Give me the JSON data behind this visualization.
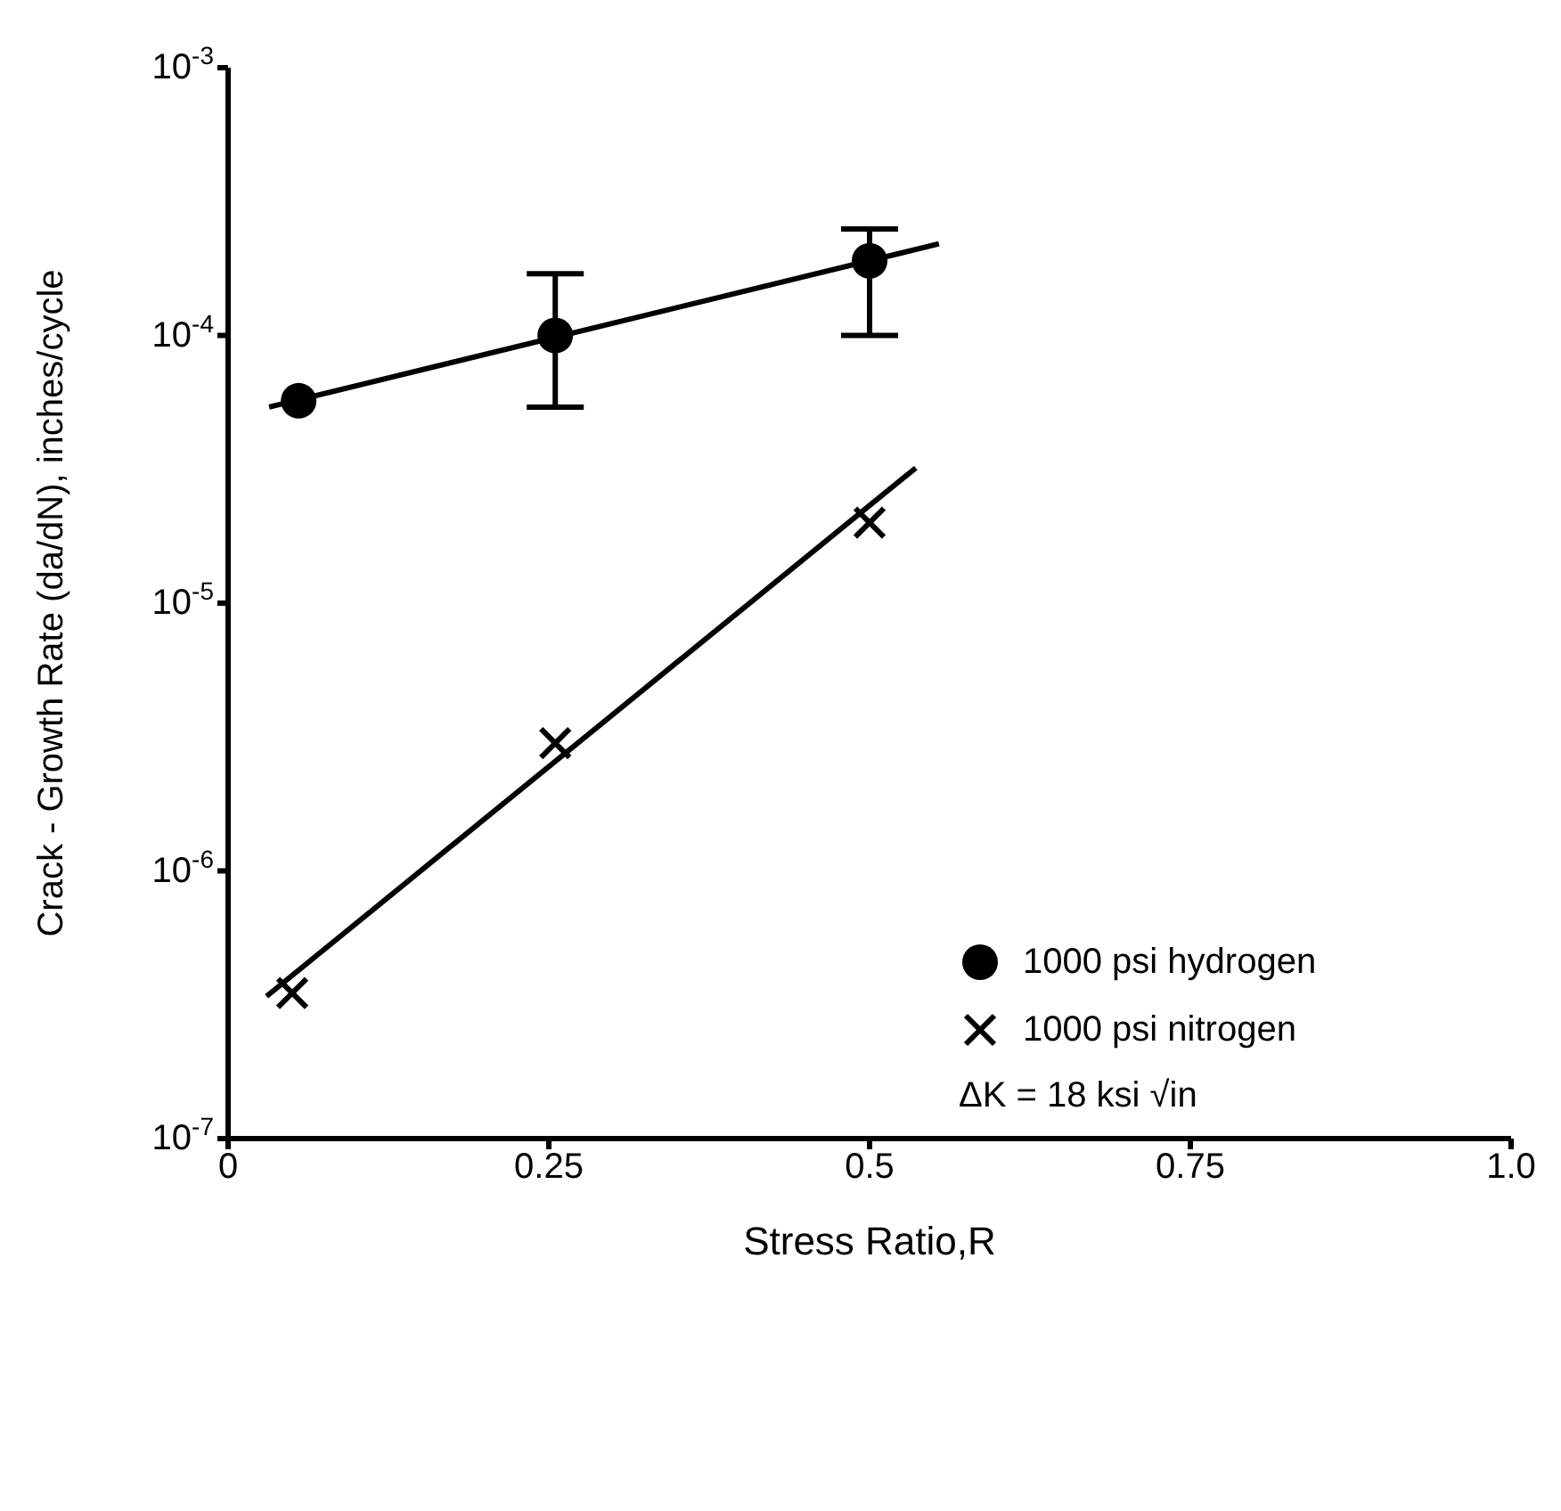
{
  "chart_data": {
    "type": "scatter",
    "xlabel": "Stress Ratio,R",
    "ylabel": "Crack - Growth Rate (da/dN), inches/cycle",
    "log": "y",
    "xlim": [
      0,
      1
    ],
    "xticks": [
      0,
      0.25,
      0.5,
      0.75,
      {
        "value": 1,
        "label": "1.0"
      }
    ],
    "ylim": [
      1e-07,
      0.001
    ],
    "yticks": [
      {
        "value": 1e-07,
        "label": "10$^{-7}$"
      },
      {
        "value": 1e-06,
        "label": "10$^{-6}$"
      },
      {
        "value": 1e-05,
        "label": "10$^{-5}$"
      },
      {
        "value": 0.0001,
        "label": "10$^{-4}$"
      },
      {
        "value": 0.001,
        "label": "10$^{-3}$"
      }
    ],
    "grid": false,
    "legend": "right",
    "annotations": [
      "ΔK = 18 ksi √in"
    ],
    "series": [
      {
        "name": "1000 psi hydrogen",
        "type": "scatter",
        "marker": "circle",
        "color": "#000000",
        "x": [
          0.055,
          0.255,
          0.5
        ],
        "values": [
          5.7e-05,
          0.0001,
          0.00019
        ],
        "errors": [
          null,
          [
            5.4e-05,
            0.00017
          ],
          [
            0.0001,
            0.00025
          ]
        ]
      },
      {
        "name": "1000 psi nitrogen",
        "type": "scatter",
        "marker": "cross",
        "color": "#000000",
        "x": [
          0.05,
          0.255,
          0.5
        ],
        "values": [
          3.5e-07,
          3e-06,
          2e-05
        ]
      },
      {
        "type": "line",
        "marker": "none",
        "color": "#000000",
        "x": [
          0.032,
          0.554
        ],
        "values": [
          5.4e-05,
          0.00022
        ]
      },
      {
        "type": "line",
        "marker": "none",
        "color": "#000000",
        "x": [
          0.03,
          0.536
        ],
        "values": [
          3.4e-07,
          3.2e-05
        ]
      }
    ]
  }
}
